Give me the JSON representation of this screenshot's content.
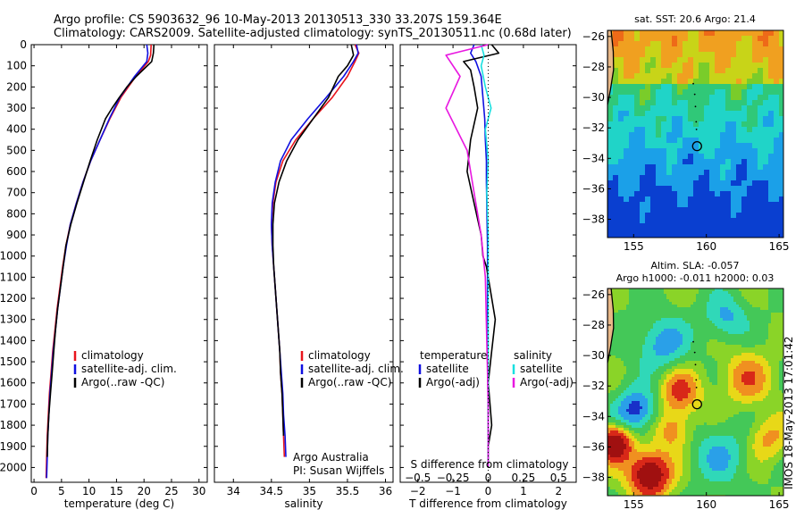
{
  "title": {
    "line1": "Argo profile: CS 5903632_96 10-May-2013 20130513_330 33.207S 159.364E",
    "line2": "Climatology: CARS2009. Satellite-adjusted climatology: synTS_20130511.nc (0.68d later)"
  },
  "colors": {
    "climatology": "#e8141c",
    "satellite": "#1010e0",
    "argo": "#000000",
    "salinity_satellite": "#18e0e0",
    "salinity_argo": "#e818e0"
  },
  "chart_data": [
    {
      "type": "line",
      "id": "temperature",
      "xlabel": "temperature (deg C)",
      "ylabel": "",
      "xlim": [
        -0.5,
        31.5
      ],
      "ylim": [
        2070,
        0
      ],
      "xticks": [
        0,
        5,
        10,
        15,
        20,
        25,
        30
      ],
      "yticks": [
        0,
        100,
        200,
        300,
        400,
        500,
        600,
        700,
        800,
        900,
        1000,
        1100,
        1200,
        1300,
        1400,
        1500,
        1600,
        1700,
        1800,
        1900,
        2000
      ],
      "legend": [
        "climatology",
        "satellite-adj. clim.",
        "Argo(..raw -QC)"
      ],
      "series": [
        {
          "name": "climatology",
          "color_key": "climatology",
          "x": [
            21.3,
            21.2,
            20.8,
            18.5,
            15.8,
            13.8,
            12.0,
            10.3,
            8.9,
            7.7,
            6.6,
            5.8,
            5.2,
            4.7,
            4.2,
            3.8,
            3.4,
            3.1,
            2.8,
            2.6,
            2.4,
            2.3,
            2.2
          ],
          "y": [
            0,
            50,
            80,
            150,
            250,
            350,
            450,
            550,
            650,
            750,
            850,
            950,
            1050,
            1150,
            1250,
            1350,
            1450,
            1550,
            1650,
            1750,
            1850,
            1950,
            2050
          ]
        },
        {
          "name": "satellite-adj. clim.",
          "color_key": "satellite",
          "x": [
            20.5,
            20.7,
            20.5,
            18.3,
            15.6,
            13.7,
            12.0,
            10.3,
            8.9,
            7.7,
            6.6,
            5.9,
            5.3,
            4.8,
            4.3,
            3.9,
            3.5,
            3.2,
            2.9,
            2.7,
            2.5,
            2.4,
            2.3
          ],
          "y": [
            0,
            40,
            80,
            150,
            250,
            350,
            450,
            550,
            650,
            750,
            850,
            950,
            1050,
            1150,
            1250,
            1350,
            1450,
            1550,
            1650,
            1750,
            1850,
            1950,
            2050
          ]
        },
        {
          "name": "Argo(..raw -QC)",
          "color_key": "argo",
          "x": [
            21.8,
            21.7,
            21.4,
            18.6,
            16.9,
            15.5,
            14.2,
            13.0,
            11.5,
            10.2,
            9.0,
            7.8,
            6.7,
            5.8,
            5.3,
            4.8,
            4.3,
            3.9,
            3.6,
            3.3,
            3.0,
            2.7,
            2.5,
            2.4
          ],
          "y": [
            0,
            40,
            80,
            150,
            200,
            250,
            300,
            350,
            450,
            550,
            650,
            750,
            850,
            950,
            1050,
            1150,
            1250,
            1350,
            1450,
            1550,
            1650,
            1750,
            1850,
            1950
          ]
        }
      ]
    },
    {
      "type": "line",
      "id": "salinity",
      "xlabel": "salinity",
      "xlim": [
        33.75,
        36.1
      ],
      "ylim": [
        2070,
        0
      ],
      "xticks": [
        34,
        34.5,
        35,
        35.5,
        36
      ],
      "legend": [
        "climatology",
        "satellite-adj. clim.",
        "Argo(..raw -QC)"
      ],
      "annotation": [
        "Argo Australia",
        "PI: Susan Wijffels"
      ],
      "series": [
        {
          "name": "climatology",
          "color_key": "climatology",
          "x": [
            35.6,
            35.65,
            35.6,
            35.5,
            35.3,
            35.05,
            34.82,
            34.65,
            34.56,
            34.52,
            34.5,
            34.51,
            34.53,
            34.55,
            34.57,
            34.59,
            34.61,
            34.62,
            34.64,
            34.65,
            34.66,
            34.67
          ],
          "y": [
            0,
            40,
            80,
            150,
            250,
            350,
            450,
            550,
            650,
            750,
            850,
            950,
            1050,
            1150,
            1250,
            1350,
            1450,
            1550,
            1650,
            1750,
            1850,
            1950
          ]
        },
        {
          "name": "satellite-adj. clim.",
          "color_key": "satellite",
          "x": [
            35.62,
            35.64,
            35.58,
            35.45,
            35.22,
            34.98,
            34.76,
            34.62,
            34.55,
            34.51,
            34.5,
            34.51,
            34.53,
            34.55,
            34.57,
            34.59,
            34.61,
            34.63,
            34.65,
            34.66,
            34.68,
            34.69
          ],
          "y": [
            0,
            40,
            80,
            150,
            250,
            350,
            450,
            550,
            650,
            750,
            850,
            950,
            1050,
            1150,
            1250,
            1350,
            1450,
            1550,
            1650,
            1750,
            1850,
            1950
          ]
        },
        {
          "name": "Argo(..raw -QC)",
          "color_key": "argo",
          "x": [
            35.55,
            35.58,
            35.5,
            35.38,
            35.25,
            35.05,
            34.85,
            34.7,
            34.6,
            34.54,
            34.52,
            34.52,
            34.53,
            34.55,
            34.57,
            34.59,
            34.61,
            34.62,
            34.64,
            34.65,
            34.66
          ],
          "y": [
            0,
            50,
            100,
            150,
            250,
            350,
            450,
            550,
            650,
            750,
            850,
            950,
            1050,
            1150,
            1250,
            1350,
            1450,
            1550,
            1650,
            1750,
            1850
          ]
        }
      ]
    },
    {
      "type": "line",
      "id": "difference",
      "xlabel": "T difference from climatology",
      "xlabel_top": "S difference from climatology",
      "xlim": [
        -2.5,
        2.5
      ],
      "ylim": [
        2070,
        0
      ],
      "xticks": [
        -2,
        -1,
        0,
        1,
        2
      ],
      "xticklabels": [
        "−2",
        "−1",
        "0",
        "1",
        "2"
      ],
      "sticks": [
        -0.5,
        -0.25,
        0,
        0.25,
        0.5
      ],
      "sticklabels": [
        "−0.5",
        "−0.25",
        "0",
        "0.25",
        "0.5"
      ],
      "legend_temperature": [
        "temperature",
        "satellite",
        "Argo(-adj)"
      ],
      "legend_salinity": [
        "salinity",
        "satellite",
        "Argo(-adj)"
      ],
      "series": [
        {
          "name": "temperature satellite",
          "color_key": "satellite",
          "x": [
            -0.4,
            -0.5,
            -0.35,
            -0.2,
            -0.15,
            -0.1,
            -0.08,
            -0.05,
            -0.05,
            -0.04,
            -0.03,
            -0.02,
            -0.02,
            -0.02,
            -0.01,
            -0.01,
            0,
            0
          ],
          "y": [
            0,
            40,
            80,
            150,
            250,
            350,
            450,
            550,
            650,
            750,
            850,
            950,
            1100,
            1250,
            1400,
            1600,
            1800,
            2000
          ]
        },
        {
          "name": "temperature Argo(-adj)",
          "color_key": "argo",
          "x": [
            0.1,
            0.3,
            -0.7,
            -0.5,
            -0.4,
            -0.3,
            -0.5,
            -0.6,
            -0.4,
            -0.2,
            -0.15,
            -0.05,
            0.05,
            0.2,
            0.1,
            0,
            0.05,
            0.1,
            0,
            0
          ],
          "y": [
            0,
            40,
            80,
            120,
            200,
            300,
            450,
            600,
            750,
            900,
            1000,
            1050,
            1150,
            1300,
            1450,
            1600,
            1700,
            1800,
            1900,
            2000
          ]
        },
        {
          "name": "salinity satellite",
          "color_key": "salinity_satellite",
          "x": [
            -0.05,
            -0.03,
            -0.05,
            -0.02,
            0.02,
            -0.02,
            0,
            -0.01,
            0,
            0,
            0,
            0
          ],
          "y": [
            0,
            50,
            100,
            200,
            300,
            400,
            550,
            700,
            900,
            1200,
            1600,
            2000
          ]
        },
        {
          "name": "salinity Argo(-adj)",
          "color_key": "salinity_argo",
          "x": [
            0,
            -0.3,
            -0.2,
            -0.3,
            -0.15,
            -0.1,
            -0.05,
            -0.02,
            -0.01,
            0,
            0
          ],
          "y": [
            0,
            50,
            150,
            300,
            500,
            700,
            900,
            1100,
            1400,
            1700,
            2000
          ]
        }
      ]
    },
    {
      "type": "heatmap",
      "id": "sst_map",
      "title": "sat. SST: 20.6  Argo: 21.4",
      "xlim": [
        153.2,
        165.3
      ],
      "ylim": [
        -39.2,
        -25.6
      ],
      "xticks": [
        155,
        160,
        165
      ],
      "yticks": [
        -26,
        -28,
        -30,
        -32,
        -34,
        -36,
        -38
      ],
      "ytick_labels": [
        "−26",
        "−28",
        "−30",
        "−32",
        "−34",
        "−36",
        "−38"
      ],
      "marker": {
        "lon": 159.36,
        "lat": -33.2
      }
    },
    {
      "type": "heatmap",
      "id": "sla_map",
      "title_line1": "Altim. SLA: -0.057",
      "title_line2": "Argo h1000: -0.011  h2000: 0.03",
      "xlim": [
        153.2,
        165.3
      ],
      "ylim": [
        -39.2,
        -25.6
      ],
      "xticks": [
        155,
        160,
        165
      ],
      "yticks": [
        -26,
        -28,
        -30,
        -32,
        -34,
        -36,
        -38
      ],
      "ytick_labels": [
        "−26",
        "−28",
        "−30",
        "−32",
        "−34",
        "−36",
        "−38"
      ],
      "marker": {
        "lon": 159.36,
        "lat": -33.2
      }
    }
  ],
  "footer_stamp": "IMOS 18-May-2013 17:01:42"
}
